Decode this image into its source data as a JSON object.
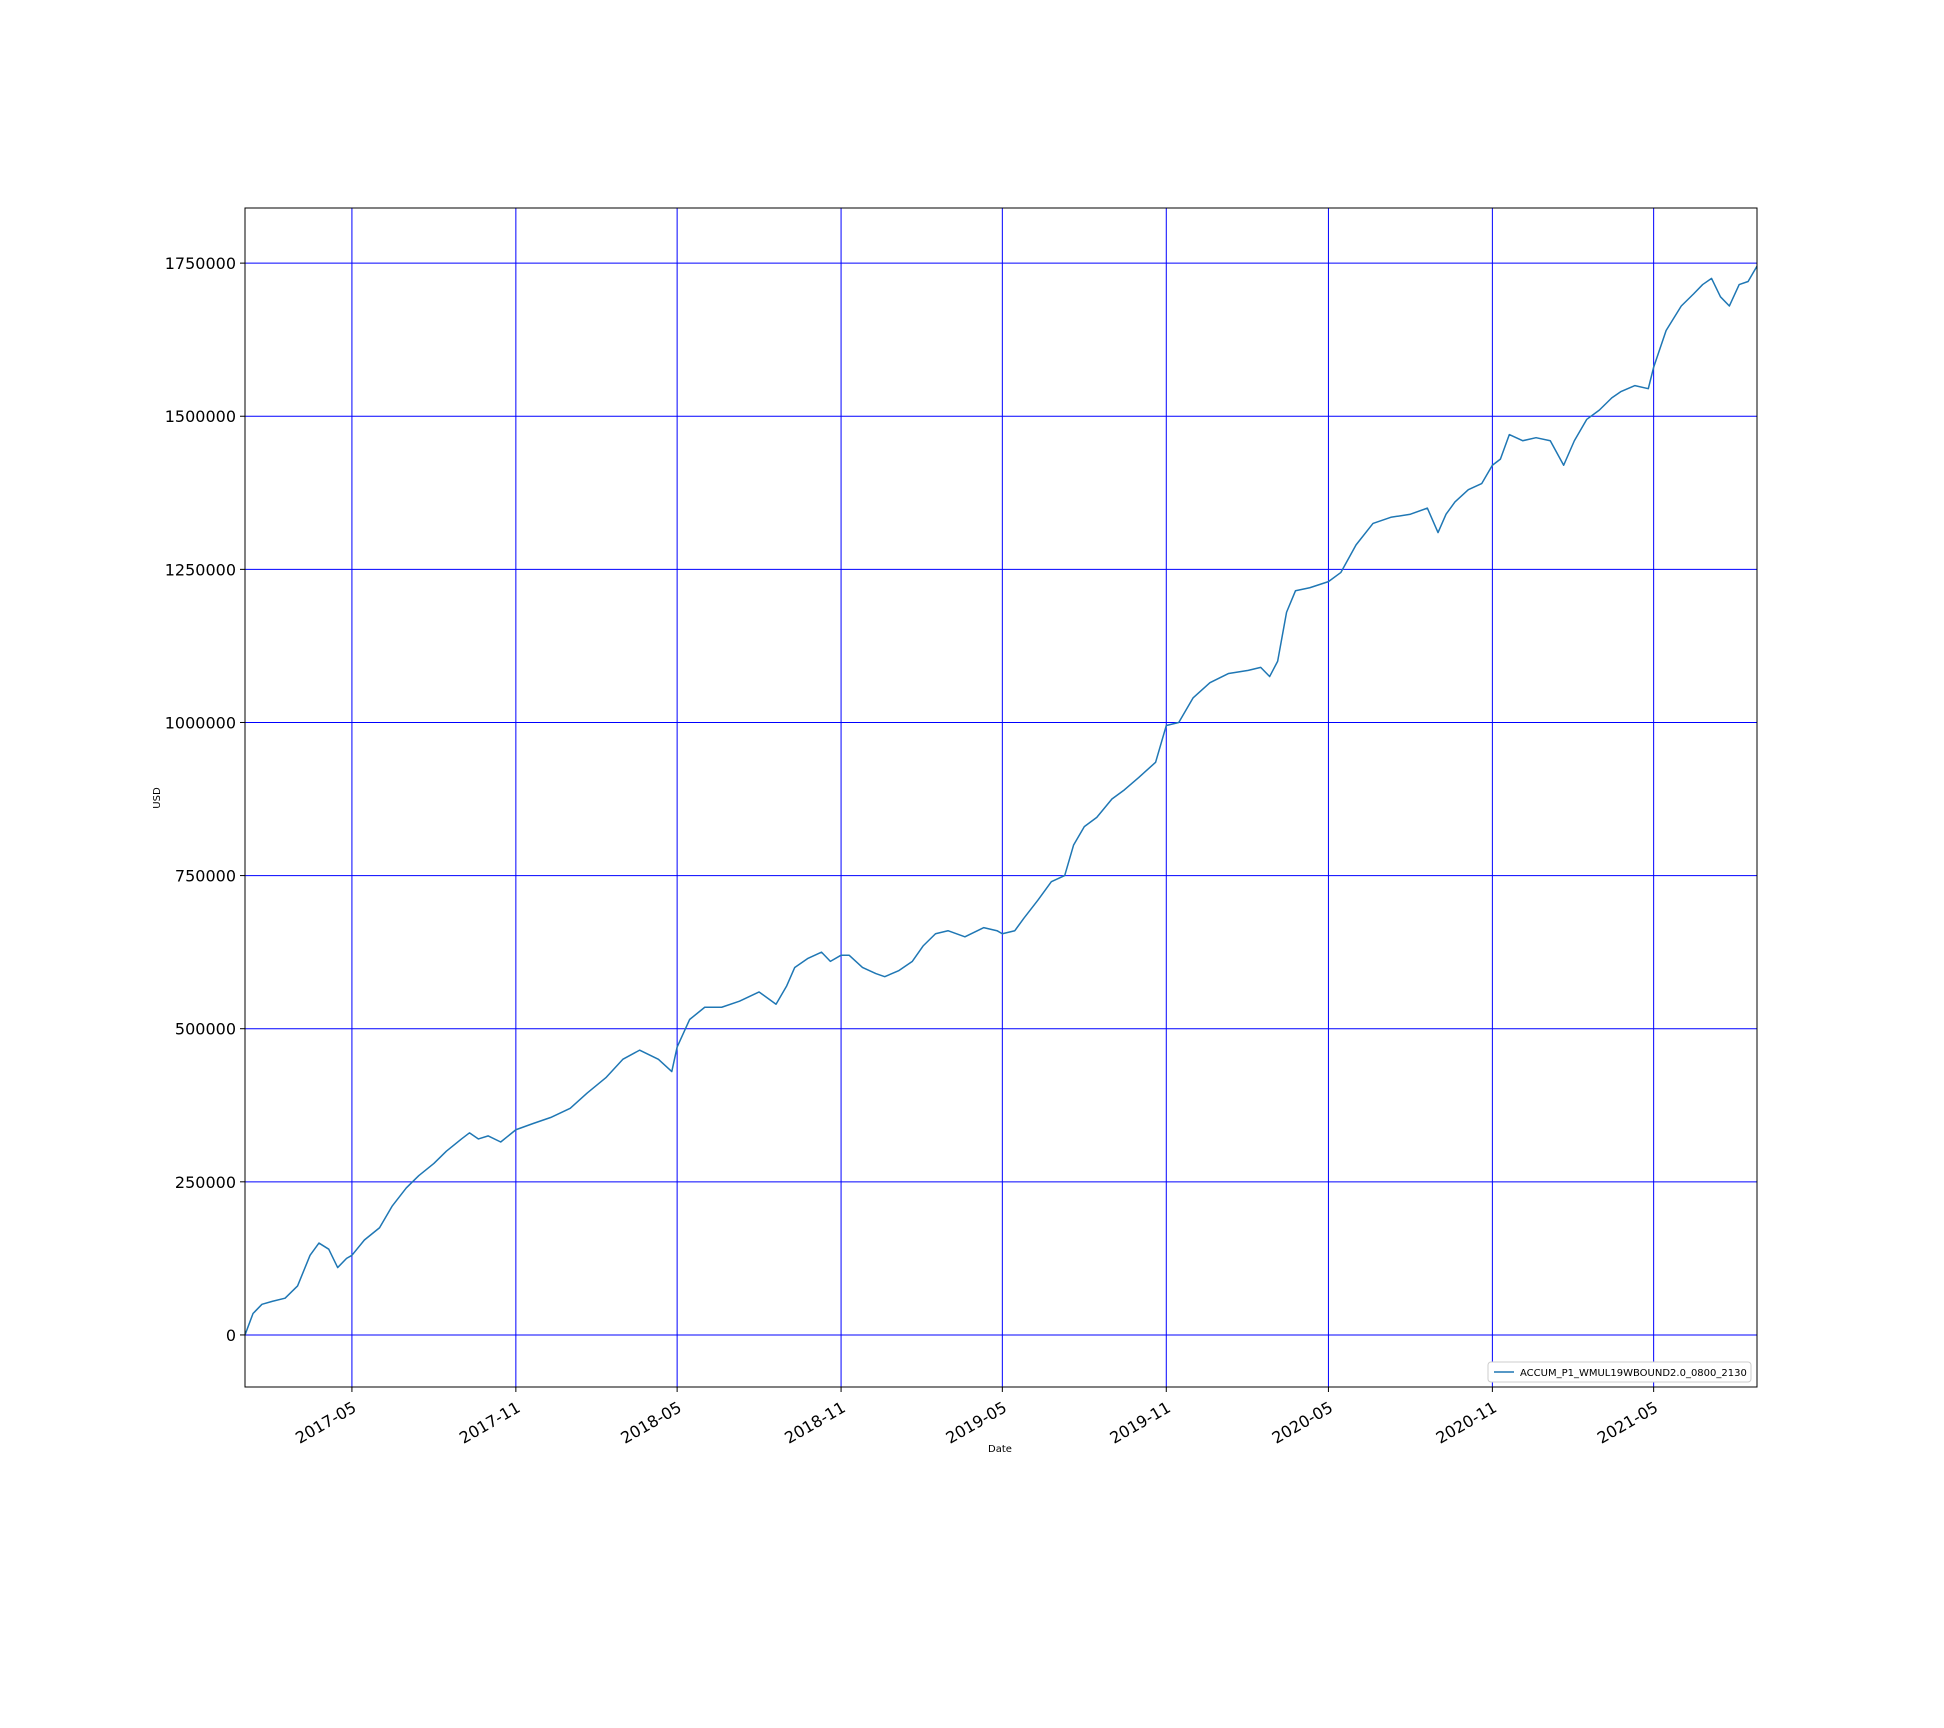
{
  "chart_data": {
    "type": "line",
    "xlabel": "Date",
    "ylabel": "USD",
    "x_tick_labels": [
      "2017-05",
      "2017-11",
      "2018-05",
      "2018-11",
      "2019-05",
      "2019-11",
      "2020-05",
      "2020-11",
      "2021-05"
    ],
    "y_tick_labels": [
      "0",
      "250000",
      "500000",
      "750000",
      "1000000",
      "1250000",
      "1500000",
      "1750000"
    ],
    "xlim": [
      "2017-01-01",
      "2021-08-25"
    ],
    "ylim": [
      -85000,
      1840000
    ],
    "grid": true,
    "grid_color": "#0000ff",
    "legend_position": "lower right",
    "series": [
      {
        "name": "ACCUM_P1_WMUL19WBOUND2.0_0800_2130",
        "color": "#1f77b4",
        "x": [
          "2017-01-01",
          "2017-01-10",
          "2017-01-20",
          "2017-02-01",
          "2017-02-15",
          "2017-03-01",
          "2017-03-15",
          "2017-03-25",
          "2017-04-05",
          "2017-04-15",
          "2017-04-25",
          "2017-05-01",
          "2017-05-15",
          "2017-06-01",
          "2017-06-15",
          "2017-07-01",
          "2017-07-15",
          "2017-08-01",
          "2017-08-15",
          "2017-09-01",
          "2017-09-10",
          "2017-09-20",
          "2017-10-01",
          "2017-10-15",
          "2017-11-01",
          "2017-11-20",
          "2017-12-10",
          "2018-01-01",
          "2018-01-20",
          "2018-02-10",
          "2018-03-01",
          "2018-03-20",
          "2018-04-10",
          "2018-04-25",
          "2018-05-01",
          "2018-05-15",
          "2018-06-01",
          "2018-06-20",
          "2018-07-10",
          "2018-08-01",
          "2018-08-20",
          "2018-09-01",
          "2018-09-10",
          "2018-09-25",
          "2018-10-10",
          "2018-10-20",
          "2018-11-01",
          "2018-11-10",
          "2018-11-25",
          "2018-12-10",
          "2018-12-20",
          "2019-01-05",
          "2019-01-20",
          "2019-02-01",
          "2019-02-15",
          "2019-03-01",
          "2019-03-20",
          "2019-04-10",
          "2019-04-25",
          "2019-05-01",
          "2019-05-15",
          "2019-05-25",
          "2019-06-10",
          "2019-06-25",
          "2019-07-10",
          "2019-07-20",
          "2019-08-01",
          "2019-08-15",
          "2019-09-01",
          "2019-09-15",
          "2019-10-01",
          "2019-10-20",
          "2019-11-01",
          "2019-11-15",
          "2019-12-01",
          "2019-12-20",
          "2020-01-10",
          "2020-02-01",
          "2020-02-15",
          "2020-02-25",
          "2020-03-05",
          "2020-03-15",
          "2020-03-25",
          "2020-04-10",
          "2020-05-01",
          "2020-05-15",
          "2020-06-01",
          "2020-06-20",
          "2020-07-10",
          "2020-08-01",
          "2020-08-20",
          "2020-09-01",
          "2020-09-10",
          "2020-09-20",
          "2020-10-05",
          "2020-10-20",
          "2020-11-01",
          "2020-11-10",
          "2020-11-20",
          "2020-12-05",
          "2020-12-20",
          "2021-01-05",
          "2021-01-20",
          "2021-02-01",
          "2021-02-15",
          "2021-03-01",
          "2021-03-15",
          "2021-03-25",
          "2021-04-10",
          "2021-04-25",
          "2021-05-01",
          "2021-05-15",
          "2021-06-01",
          "2021-06-15",
          "2021-06-25",
          "2021-07-05",
          "2021-07-15",
          "2021-07-25",
          "2021-08-05",
          "2021-08-15",
          "2021-08-25"
        ],
        "y": [
          0,
          35000,
          50000,
          55000,
          60000,
          80000,
          130000,
          150000,
          140000,
          110000,
          125000,
          130000,
          155000,
          175000,
          210000,
          240000,
          260000,
          280000,
          300000,
          320000,
          330000,
          320000,
          325000,
          315000,
          335000,
          345000,
          355000,
          370000,
          395000,
          420000,
          450000,
          465000,
          450000,
          430000,
          470000,
          515000,
          535000,
          535000,
          545000,
          560000,
          540000,
          570000,
          600000,
          615000,
          625000,
          610000,
          620000,
          620000,
          600000,
          590000,
          585000,
          595000,
          610000,
          635000,
          655000,
          660000,
          650000,
          665000,
          660000,
          655000,
          660000,
          680000,
          710000,
          740000,
          750000,
          800000,
          830000,
          845000,
          875000,
          890000,
          910000,
          935000,
          995000,
          1000000,
          1040000,
          1065000,
          1080000,
          1085000,
          1090000,
          1075000,
          1100000,
          1180000,
          1215000,
          1220000,
          1230000,
          1245000,
          1290000,
          1325000,
          1335000,
          1340000,
          1350000,
          1310000,
          1340000,
          1360000,
          1380000,
          1390000,
          1420000,
          1430000,
          1470000,
          1460000,
          1465000,
          1460000,
          1420000,
          1460000,
          1495000,
          1510000,
          1530000,
          1540000,
          1550000,
          1545000,
          1580000,
          1640000,
          1680000,
          1700000,
          1715000,
          1725000,
          1695000,
          1680000,
          1715000,
          1720000,
          1745000
        ]
      }
    ]
  }
}
